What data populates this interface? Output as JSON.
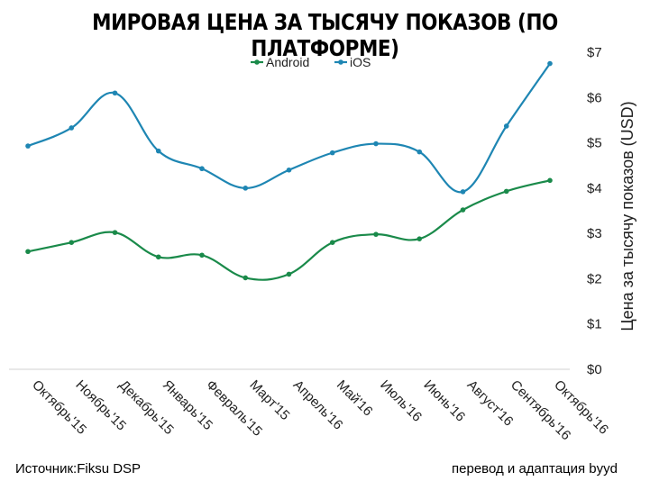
{
  "chart_data": {
    "type": "line",
    "title": "МИРОВАЯ ЦЕНА ЗА ТЫСЯЧУ ПОКАЗОВ (ПО ПЛАТФОРМЕ)",
    "ylabel": "Цена за тысячу показов (USD)",
    "categories": [
      "Октябрь'15",
      "Ноябрь'15",
      "Декабрь'15",
      "Январь'15",
      "Февраль'15",
      "Март'15",
      "Апрель'16",
      "Май'16",
      "Июль'16",
      "Июнь'16",
      "Август'16",
      "Сентябрь'16",
      "Октябрь'16"
    ],
    "series": [
      {
        "name": "Android",
        "color": "#1a8a4a",
        "values": [
          2.6,
          2.8,
          3.02,
          2.48,
          2.52,
          2.02,
          2.1,
          2.8,
          2.98,
          2.88,
          3.52,
          3.93,
          4.17
        ]
      },
      {
        "name": "iOS",
        "color": "#1e86b3",
        "values": [
          4.93,
          5.33,
          6.1,
          4.82,
          4.43,
          4.0,
          4.4,
          4.78,
          4.98,
          4.8,
          3.92,
          5.37,
          6.75
        ]
      }
    ],
    "ylim": [
      0,
      7
    ],
    "yticks": [
      "$0",
      "$1",
      "$2",
      "$3",
      "$4",
      "$5",
      "$6",
      "$7"
    ],
    "legend": "top-center",
    "grid": false
  },
  "footer": {
    "source": "Источник:Fiksu DSP",
    "credit": "перевод и адаптация byyd"
  }
}
